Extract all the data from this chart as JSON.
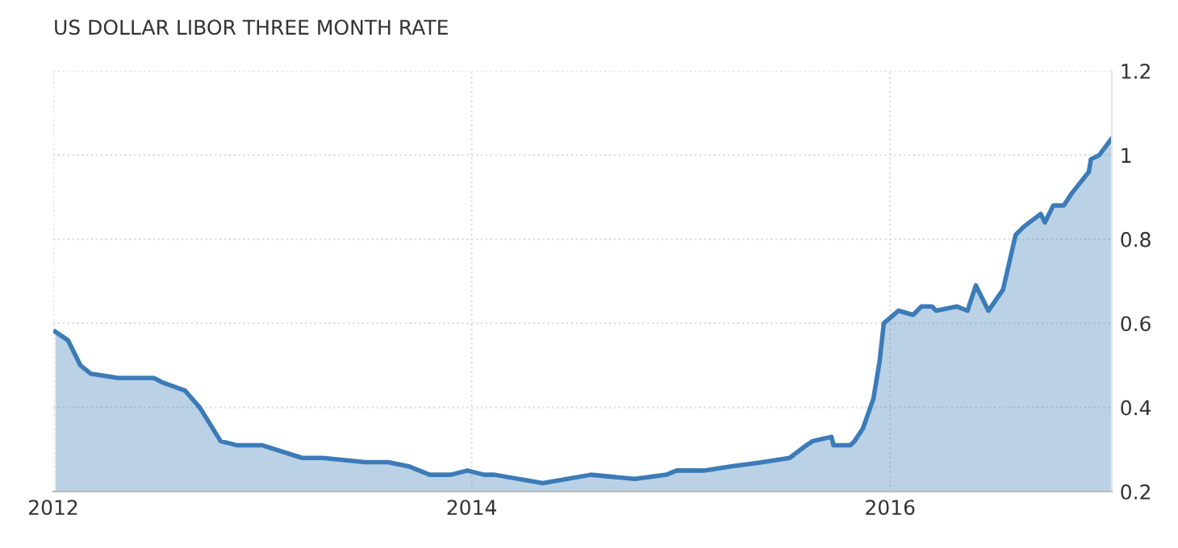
{
  "chart_data": {
    "type": "area",
    "title": "US DOLLAR LIBOR THREE MONTH RATE",
    "x": [
      2012.01,
      2012.07,
      2012.13,
      2012.18,
      2012.31,
      2012.48,
      2012.52,
      2012.63,
      2012.7,
      2012.8,
      2012.88,
      2013.0,
      2013.19,
      2013.29,
      2013.49,
      2013.6,
      2013.7,
      2013.8,
      2013.9,
      2013.98,
      2014.06,
      2014.11,
      2014.34,
      2014.57,
      2014.78,
      2014.93,
      2014.98,
      2015.11,
      2015.24,
      2015.39,
      2015.52,
      2015.6,
      2015.63,
      2015.72,
      2015.73,
      2015.81,
      2015.83,
      2015.87,
      2015.92,
      2015.95,
      2015.97,
      2016.04,
      2016.11,
      2016.15,
      2016.2,
      2016.22,
      2016.32,
      2016.37,
      2016.41,
      2016.47,
      2016.54,
      2016.6,
      2016.64,
      2016.72,
      2016.74,
      2016.78,
      2016.83,
      2016.87,
      2016.95,
      2016.96,
      2017.0,
      2017.06
    ],
    "series": [
      {
        "color": "#3b7bb8",
        "values": [
          0.58,
          0.56,
          0.5,
          0.48,
          0.47,
          0.47,
          0.46,
          0.44,
          0.4,
          0.32,
          0.31,
          0.31,
          0.28,
          0.28,
          0.27,
          0.27,
          0.26,
          0.24,
          0.24,
          0.25,
          0.24,
          0.24,
          0.22,
          0.24,
          0.23,
          0.24,
          0.25,
          0.25,
          0.26,
          0.27,
          0.28,
          0.31,
          0.32,
          0.33,
          0.31,
          0.31,
          0.32,
          0.35,
          0.42,
          0.51,
          0.6,
          0.63,
          0.62,
          0.64,
          0.64,
          0.63,
          0.64,
          0.63,
          0.69,
          0.63,
          0.68,
          0.81,
          0.83,
          0.86,
          0.84,
          0.88,
          0.88,
          0.91,
          0.96,
          0.99,
          1.0,
          1.04
        ]
      }
    ],
    "xlim": [
      2012,
      2017.06
    ],
    "ylim": [
      0.2,
      1.2
    ],
    "xticks": [
      2012,
      2014,
      2016
    ],
    "yticks": [
      0.2,
      0.4,
      0.6,
      0.8,
      1,
      1.2
    ],
    "grid": true
  }
}
